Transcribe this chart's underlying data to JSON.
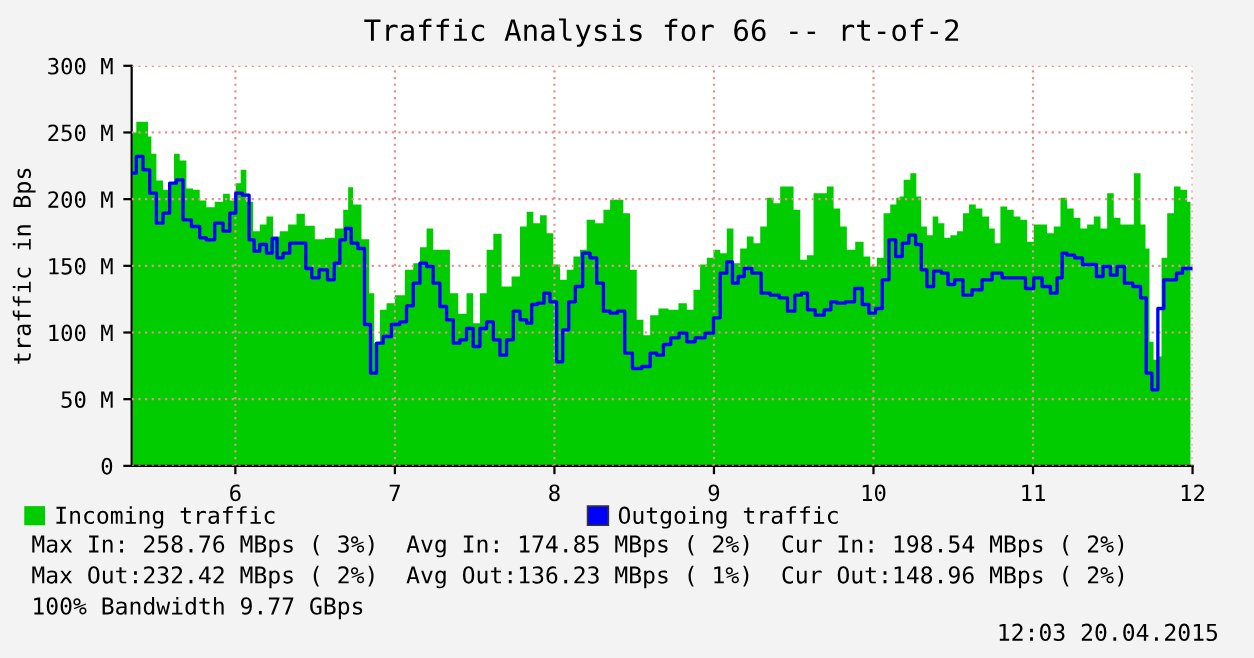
{
  "chart_data": {
    "type": "area",
    "title": "Traffic Analysis for 66 -- rt-of-2",
    "ylabel": "traffic in Bps",
    "xlim": [
      5.35,
      12.0
    ],
    "xticks": [
      6,
      7,
      8,
      9,
      10,
      11,
      12
    ],
    "ylim": [
      0,
      300
    ],
    "yticks": [
      0,
      {
        "value": 50,
        "label": "50 M"
      },
      {
        "value": 100,
        "label": "100 M"
      },
      {
        "value": 150,
        "label": "150 M"
      },
      {
        "value": 200,
        "label": "200 M"
      },
      {
        "value": 250,
        "label": "250 M"
      },
      {
        "value": 300,
        "label": "300 M"
      }
    ],
    "grid": true,
    "legend": "bottom",
    "series": [
      {
        "name": "Incoming traffic",
        "type": "area",
        "color": "#00cc00",
        "x": [
          5.358,
          5.4,
          5.442,
          5.463,
          5.484,
          5.526,
          5.567,
          5.601,
          5.63,
          5.672,
          5.714,
          5.756,
          5.797,
          5.839,
          5.902,
          5.944,
          5.986,
          6.019,
          6.048,
          6.09,
          6.132,
          6.174,
          6.216,
          6.257,
          6.299,
          6.362,
          6.404,
          6.467,
          6.529,
          6.592,
          6.655,
          6.697,
          6.717,
          6.759,
          6.822,
          6.856,
          6.885,
          6.927,
          6.968,
          7.031,
          7.094,
          7.136,
          7.178,
          7.219,
          7.261,
          7.324,
          7.366,
          7.428,
          7.47,
          7.512,
          7.554,
          7.596,
          7.638,
          7.7,
          7.763,
          7.805,
          7.847,
          7.889,
          7.931,
          7.972,
          8.014,
          8.056,
          8.098,
          8.14,
          8.181,
          8.223,
          8.286,
          8.328,
          8.37,
          8.411,
          8.453,
          8.495,
          8.537,
          8.579,
          8.621,
          8.683,
          8.746,
          8.809,
          8.851,
          8.892,
          8.934,
          8.976,
          9.018,
          9.06,
          9.101,
          9.143,
          9.185,
          9.227,
          9.269,
          9.311,
          9.352,
          9.394,
          9.436,
          9.478,
          9.52,
          9.562,
          9.603,
          9.645,
          9.687,
          9.729,
          9.771,
          9.812,
          9.854,
          9.917,
          9.959,
          10.001,
          10.042,
          10.084,
          10.126,
          10.16,
          10.168,
          10.21,
          10.252,
          10.285,
          10.314,
          10.356,
          10.386,
          10.427,
          10.461,
          10.503,
          10.544,
          10.578,
          10.62,
          10.662,
          10.703,
          10.745,
          10.775,
          10.816,
          10.858,
          10.9,
          10.942,
          10.984,
          11.025,
          11.067,
          11.109,
          11.151,
          11.193,
          11.234,
          11.276,
          11.318,
          11.36,
          11.402,
          11.444,
          11.485,
          11.527,
          11.569,
          11.611,
          11.653,
          11.695,
          11.715,
          11.745,
          11.766,
          11.791,
          11.82,
          11.862,
          11.904,
          11.945,
          11.987
        ],
        "values": [
          250,
          258,
          258,
          247,
          234,
          214,
          207,
          212,
          234,
          229,
          208,
          207,
          199,
          194,
          198,
          204,
          199,
          212,
          222,
          198,
          176,
          181,
          187,
          172,
          176,
          181,
          189,
          180,
          170,
          171,
          178,
          192,
          209,
          196,
          170,
          129.5,
          92,
          117,
          122,
          128,
          147,
          152,
          164,
          178,
          162,
          162,
          129.5,
          114,
          129.5,
          107,
          129.5,
          162,
          174,
          134.5,
          142,
          179.5,
          190.5,
          182,
          188,
          174.5,
          151,
          139.5,
          147,
          157,
          162,
          184.5,
          182,
          192,
          199.5,
          199.5,
          189.5,
          147,
          109.5,
          98,
          113,
          118,
          117,
          122,
          117,
          132,
          151,
          156,
          162,
          159.5,
          178,
          152,
          163,
          172,
          167,
          179.5,
          201,
          197,
          209.5,
          209.5,
          192,
          154.5,
          158,
          204.5,
          204.5,
          209.5,
          193,
          179.5,
          162,
          168,
          157,
          149.5,
          156,
          189.5,
          196,
          201,
          202,
          214.5,
          219.5,
          202,
          179.5,
          173,
          187,
          182,
          171,
          173,
          176,
          189.5,
          196,
          193,
          187,
          178,
          167,
          194.5,
          192,
          187,
          184.5,
          168,
          181,
          181,
          174.5,
          179.5,
          201,
          193,
          186,
          178,
          181,
          187,
          178,
          204.5,
          186,
          181,
          181,
          219.5,
          181,
          163,
          93,
          79.5,
          82,
          156,
          189.5,
          209.5,
          207,
          198
        ]
      },
      {
        "name": "Outgoing traffic",
        "type": "step",
        "color": "#0000ff",
        "x": [
          5.358,
          5.4,
          5.442,
          5.484,
          5.526,
          5.567,
          5.609,
          5.651,
          5.693,
          5.756,
          5.797,
          5.839,
          5.902,
          5.944,
          5.986,
          6.019,
          6.069,
          6.103,
          6.132,
          6.174,
          6.216,
          6.245,
          6.278,
          6.32,
          6.362,
          6.425,
          6.458,
          6.5,
          6.55,
          6.605,
          6.634,
          6.676,
          6.705,
          6.747,
          6.789,
          6.83,
          6.864,
          6.906,
          6.947,
          7.01,
          7.052,
          7.094,
          7.136,
          7.178,
          7.219,
          7.261,
          7.303,
          7.345,
          7.387,
          7.428,
          7.47,
          7.512,
          7.554,
          7.596,
          7.638,
          7.679,
          7.721,
          7.763,
          7.805,
          7.847,
          7.868,
          7.918,
          7.951,
          7.993,
          8.035,
          8.069,
          8.11,
          8.152,
          8.202,
          8.244,
          8.286,
          8.328,
          8.37,
          8.42,
          8.462,
          8.516,
          8.579,
          8.621,
          8.662,
          8.704,
          8.754,
          8.809,
          8.851,
          8.913,
          8.976,
          9.018,
          9.06,
          9.101,
          9.131,
          9.173,
          9.206,
          9.269,
          9.323,
          9.382,
          9.436,
          9.486,
          9.528,
          9.57,
          9.603,
          9.666,
          9.716,
          9.75,
          9.792,
          9.854,
          9.909,
          9.95,
          9.992,
          10.034,
          10.076,
          10.118,
          10.16,
          10.201,
          10.243,
          10.285,
          10.314,
          10.356,
          10.398,
          10.452,
          10.482,
          10.536,
          10.586,
          10.649,
          10.712,
          10.775,
          10.837,
          10.921,
          10.984,
          11.025,
          11.088,
          11.13,
          11.172,
          11.193,
          11.234,
          11.289,
          11.331,
          11.381,
          11.414,
          11.464,
          11.506,
          11.548,
          11.598,
          11.653,
          11.695,
          11.724,
          11.766,
          11.799,
          11.841,
          11.883,
          11.916,
          11.958,
          11.996
        ],
        "values": [
          219.5,
          232,
          222,
          204.5,
          182,
          189.5,
          212,
          214.5,
          184.5,
          179.5,
          171,
          169.5,
          182,
          176,
          189.5,
          204.5,
          203,
          169.5,
          161,
          166,
          159.5,
          170.5,
          156,
          159.5,
          167,
          167,
          148,
          141,
          147,
          139.5,
          152,
          169.5,
          178,
          167,
          163,
          106,
          69.5,
          92,
          97,
          106,
          108,
          120,
          137,
          152,
          149.5,
          137,
          119.5,
          109.5,
          92,
          94.5,
          103,
          89.5,
          103,
          108,
          94.5,
          83,
          94.5,
          116,
          109.5,
          107,
          121,
          122,
          129.5,
          123,
          78,
          102,
          123,
          134.5,
          159.5,
          156,
          137,
          116,
          114.5,
          116,
          84.5,
          73,
          74.5,
          84.5,
          83,
          91,
          96,
          99.5,
          93,
          96,
          99.5,
          111,
          144.5,
          153,
          137,
          142,
          148,
          144.5,
          129.5,
          128,
          126,
          116,
          128,
          129.5,
          117,
          113,
          117,
          123,
          122,
          123,
          133,
          121,
          114.5,
          118,
          139.5,
          169.5,
          157,
          167,
          173,
          166,
          147,
          134.5,
          146,
          144.5,
          136,
          139.5,
          128,
          132,
          139.5,
          144.5,
          141,
          141,
          133,
          141,
          134.5,
          129.5,
          141,
          159.5,
          158,
          156,
          151,
          151,
          142,
          149.5,
          143,
          149.5,
          137,
          134.5,
          126,
          69.5,
          57,
          118,
          139.5,
          139.5,
          144.5,
          148,
          148
        ]
      }
    ],
    "annotations": [
      "Max In: 258.76 MBps ( 3%)  Avg In: 174.85 MBps ( 2%)  Cur In: 198.54 MBps ( 2%)",
      "Max Out:232.42 MBps ( 2%)  Avg Out:136.23 MBps ( 1%)  Cur Out:148.96 MBps ( 2%)",
      "100% Bandwidth 9.77 GBps",
      "12:03 20.04.2015"
    ]
  }
}
